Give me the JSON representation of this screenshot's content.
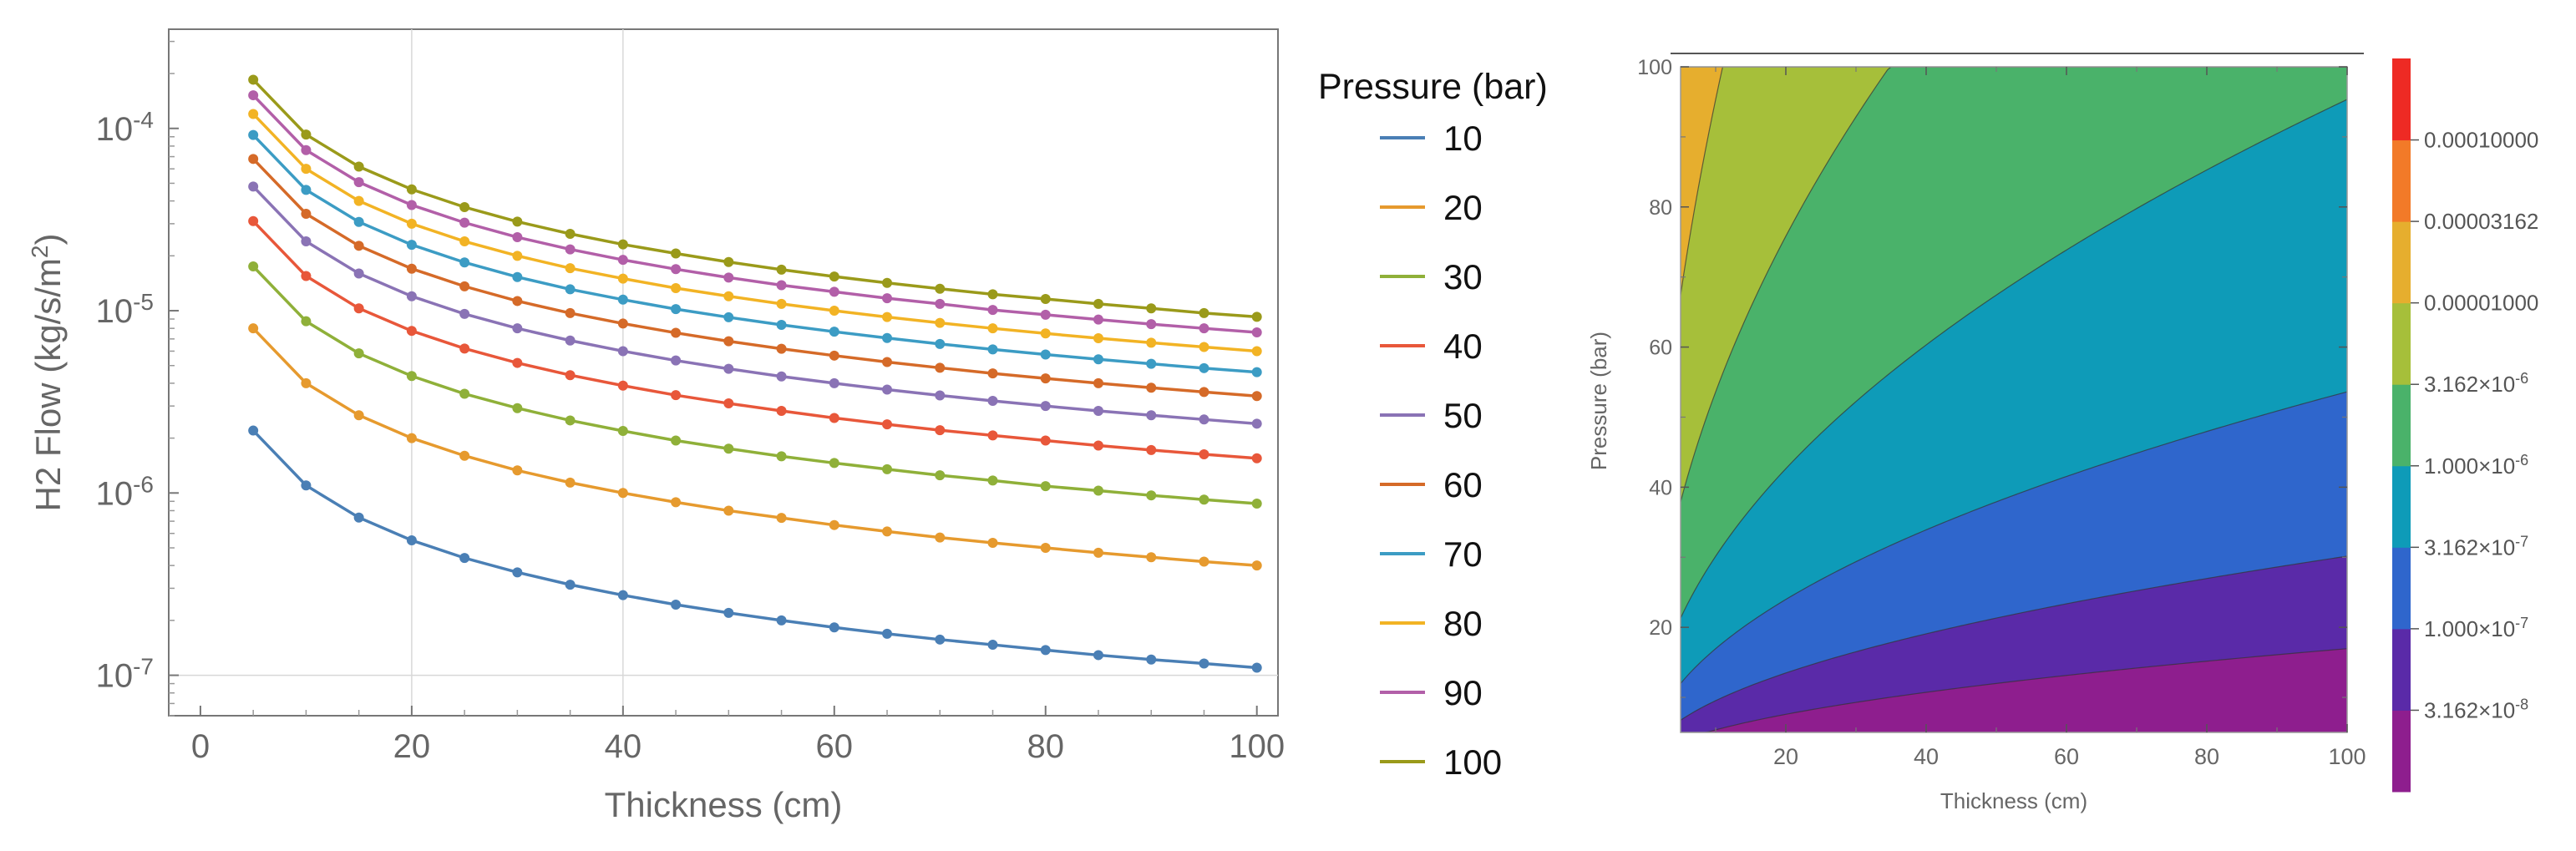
{
  "chart_data": [
    {
      "type": "line",
      "xlabel": "Thickness (cm)",
      "ylabel": "H2 Flow (kg/s/m²)",
      "yscale": "log",
      "xlim": [
        -3,
        102
      ],
      "ylim": [
        6e-08,
        0.00035
      ],
      "grid": true,
      "grid_x": [
        20,
        40
      ],
      "grid_y": [
        1e-07
      ],
      "xticks": [
        {
          "v": 0,
          "label": "0"
        },
        {
          "v": 20,
          "label": "20"
        },
        {
          "v": 40,
          "label": "40"
        },
        {
          "v": 60,
          "label": "60"
        },
        {
          "v": 80,
          "label": "80"
        },
        {
          "v": 100,
          "label": "100"
        }
      ],
      "yticks": [
        {
          "v": 1e-07,
          "base": "10",
          "exp": "-7"
        },
        {
          "v": 1e-06,
          "base": "10",
          "exp": "-6"
        },
        {
          "v": 1e-05,
          "base": "10",
          "exp": "-5"
        },
        {
          "v": 0.0001,
          "base": "10",
          "exp": "-4"
        }
      ],
      "legend_title": "Pressure (bar)",
      "legend_position": "right",
      "x": [
        5,
        10,
        15,
        20,
        25,
        30,
        35,
        40,
        45,
        50,
        55,
        60,
        65,
        70,
        75,
        80,
        85,
        90,
        95,
        100
      ],
      "series": [
        {
          "name": "10",
          "color": "#4a7fb5",
          "values": [
            2.2e-06,
            1.1e-06,
            7.33e-07,
            5.5e-07,
            4.4e-07,
            3.67e-07,
            3.14e-07,
            2.75e-07,
            2.44e-07,
            2.2e-07,
            2e-07,
            1.83e-07,
            1.69e-07,
            1.57e-07,
            1.47e-07,
            1.375e-07,
            1.29e-07,
            1.22e-07,
            1.16e-07,
            1.1e-07
          ]
        },
        {
          "name": "20",
          "color": "#e69a2e",
          "values": [
            8e-06,
            4e-06,
            2.67e-06,
            2e-06,
            1.6e-06,
            1.33e-06,
            1.14e-06,
            1e-06,
            8.9e-07,
            8e-07,
            7.3e-07,
            6.67e-07,
            6.15e-07,
            5.7e-07,
            5.33e-07,
            5e-07,
            4.7e-07,
            4.44e-07,
            4.2e-07,
            4e-07
          ]
        },
        {
          "name": "30",
          "color": "#8fb039",
          "values": [
            1.75e-05,
            8.75e-06,
            5.83e-06,
            4.38e-06,
            3.5e-06,
            2.92e-06,
            2.5e-06,
            2.19e-06,
            1.94e-06,
            1.75e-06,
            1.59e-06,
            1.46e-06,
            1.35e-06,
            1.25e-06,
            1.17e-06,
            1.09e-06,
            1.03e-06,
            9.7e-07,
            9.2e-07,
            8.75e-07
          ]
        },
        {
          "name": "40",
          "color": "#e8573a",
          "values": [
            3.1e-05,
            1.55e-05,
            1.03e-05,
            7.75e-06,
            6.2e-06,
            5.17e-06,
            4.43e-06,
            3.88e-06,
            3.44e-06,
            3.1e-06,
            2.82e-06,
            2.58e-06,
            2.38e-06,
            2.21e-06,
            2.07e-06,
            1.94e-06,
            1.82e-06,
            1.72e-06,
            1.63e-06,
            1.55e-06
          ]
        },
        {
          "name": "50",
          "color": "#8a73b5",
          "values": [
            4.8e-05,
            2.4e-05,
            1.6e-05,
            1.2e-05,
            9.6e-06,
            8e-06,
            6.86e-06,
            6e-06,
            5.33e-06,
            4.8e-06,
            4.36e-06,
            4e-06,
            3.69e-06,
            3.43e-06,
            3.2e-06,
            3e-06,
            2.82e-06,
            2.67e-06,
            2.53e-06,
            2.4e-06
          ]
        },
        {
          "name": "60",
          "color": "#d56a28",
          "values": [
            6.8e-05,
            3.4e-05,
            2.27e-05,
            1.7e-05,
            1.36e-05,
            1.13e-05,
            9.7e-06,
            8.5e-06,
            7.56e-06,
            6.8e-06,
            6.18e-06,
            5.67e-06,
            5.23e-06,
            4.86e-06,
            4.53e-06,
            4.25e-06,
            4e-06,
            3.78e-06,
            3.58e-06,
            3.4e-06
          ]
        },
        {
          "name": "70",
          "color": "#3c9cc4",
          "values": [
            9.2e-05,
            4.6e-05,
            3.07e-05,
            2.3e-05,
            1.84e-05,
            1.53e-05,
            1.31e-05,
            1.15e-05,
            1.02e-05,
            9.2e-06,
            8.36e-06,
            7.67e-06,
            7.08e-06,
            6.57e-06,
            6.13e-06,
            5.75e-06,
            5.41e-06,
            5.11e-06,
            4.84e-06,
            4.6e-06
          ]
        },
        {
          "name": "80",
          "color": "#f2b324",
          "values": [
            0.00012,
            6e-05,
            4e-05,
            3e-05,
            2.4e-05,
            2e-05,
            1.71e-05,
            1.5e-05,
            1.33e-05,
            1.2e-05,
            1.09e-05,
            1e-05,
            9.23e-06,
            8.57e-06,
            8e-06,
            7.5e-06,
            7.06e-06,
            6.67e-06,
            6.32e-06,
            6e-06
          ]
        },
        {
          "name": "90",
          "color": "#b25fa8",
          "values": [
            0.000152,
            7.6e-05,
            5.07e-05,
            3.8e-05,
            3.04e-05,
            2.53e-05,
            2.17e-05,
            1.9e-05,
            1.69e-05,
            1.52e-05,
            1.38e-05,
            1.27e-05,
            1.17e-05,
            1.09e-05,
            1.01e-05,
            9.5e-06,
            8.94e-06,
            8.44e-06,
            8e-06,
            7.6e-06
          ]
        },
        {
          "name": "100",
          "color": "#9a9a1a",
          "values": [
            0.000185,
            9.25e-05,
            6.17e-05,
            4.63e-05,
            3.7e-05,
            3.08e-05,
            2.64e-05,
            2.31e-05,
            2.06e-05,
            1.85e-05,
            1.68e-05,
            1.54e-05,
            1.42e-05,
            1.32e-05,
            1.23e-05,
            1.16e-05,
            1.09e-05,
            1.03e-05,
            9.7e-06,
            9.25e-06
          ]
        }
      ]
    },
    {
      "type": "contour",
      "xlabel": "Thickness (cm)",
      "ylabel": "Pressure (bar)",
      "xlim": [
        5,
        100
      ],
      "ylim": [
        5,
        100
      ],
      "xticks": [
        20,
        40,
        60,
        80,
        100
      ],
      "yticks": [
        20,
        40,
        60,
        80,
        100
      ],
      "function": "H2 flow from thickness and pressure",
      "contour_levels": [
        3.162e-08,
        1e-07,
        3.162e-07,
        1e-06,
        3.162e-06,
        1e-05,
        3.162e-05,
        0.0001
      ],
      "band_colors": [
        "#8e1e8e",
        "#5a2aa8",
        "#2f66cc",
        "#0e9bb8",
        "#4ab26a",
        "#a6bf3a",
        "#e6ae2e",
        "#f27a28",
        "#ee2a24"
      ],
      "colorbar_labels": [
        {
          "mant": "3.162",
          "exp": "-8"
        },
        {
          "mant": "1.000",
          "exp": "-7"
        },
        {
          "mant": "3.162",
          "exp": "-7"
        },
        {
          "mant": "1.000",
          "exp": "-6"
        },
        {
          "mant": "3.162",
          "exp": "-6"
        },
        {
          "text": "0.00001000"
        },
        {
          "text": "0.00003162"
        },
        {
          "text": "0.00010000"
        }
      ],
      "colorbar_times": "×",
      "colorbar_power_base": "10"
    }
  ]
}
